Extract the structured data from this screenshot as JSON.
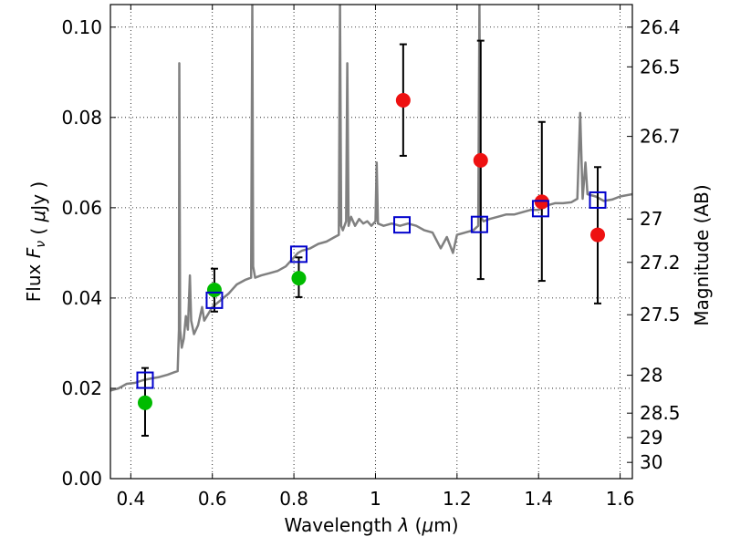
{
  "chart_data": {
    "type": "scatter",
    "xlabel": "Wavelength λ (μm)",
    "ylabel": "Flux F_ν (μJy)",
    "ylabel_right": "Magnitude (AB)",
    "xlim": [
      0.35,
      1.63
    ],
    "ylim": [
      0.0,
      0.105
    ],
    "x_ticks": [
      "0.4",
      "0.6",
      "0.8",
      "1",
      "1.2",
      "1.4",
      "1.6"
    ],
    "y_ticks": [
      "0.00",
      "0.02",
      "0.04",
      "0.06",
      "0.08",
      "0.10"
    ],
    "right_ticks": [
      {
        "label": "26.4",
        "flux": 0.1
      },
      {
        "label": "26.5",
        "flux": 0.0912
      },
      {
        "label": "26.7",
        "flux": 0.0758
      },
      {
        "label": "27",
        "flux": 0.0575
      },
      {
        "label": "27.2",
        "flux": 0.0479
      },
      {
        "label": "27.5",
        "flux": 0.0363
      },
      {
        "label": "28",
        "flux": 0.0229
      },
      {
        "label": "28.5",
        "flux": 0.0145
      },
      {
        "label": "29",
        "flux": 0.0091
      },
      {
        "label": "30",
        "flux": 0.0036
      }
    ],
    "grid": true,
    "colors": {
      "spectrum": "#808080",
      "green": "#00bb00",
      "red": "#ee1111",
      "model": "#0000cc",
      "errorbar": "#000000"
    },
    "model_points": [
      {
        "x": 0.435,
        "y": 0.0218
      },
      {
        "x": 0.605,
        "y": 0.0395
      },
      {
        "x": 0.812,
        "y": 0.0497
      },
      {
        "x": 1.065,
        "y": 0.0562
      },
      {
        "x": 1.255,
        "y": 0.0563
      },
      {
        "x": 1.405,
        "y": 0.0598
      },
      {
        "x": 1.545,
        "y": 0.0617
      }
    ],
    "observed_points": [
      {
        "x": 0.435,
        "y": 0.0168,
        "yerr_low": 0.0095,
        "yerr_high": 0.0245,
        "color": "green"
      },
      {
        "x": 0.605,
        "y": 0.0418,
        "yerr_low": 0.037,
        "yerr_high": 0.0465,
        "color": "green"
      },
      {
        "x": 0.812,
        "y": 0.0444,
        "yerr_low": 0.0402,
        "yerr_high": 0.049,
        "color": "green"
      },
      {
        "x": 1.068,
        "y": 0.0838,
        "yerr_low": 0.0715,
        "yerr_high": 0.0962,
        "color": "red"
      },
      {
        "x": 1.258,
        "y": 0.0705,
        "yerr_low": 0.0442,
        "yerr_high": 0.097,
        "color": "red"
      },
      {
        "x": 1.408,
        "y": 0.0613,
        "yerr_low": 0.0438,
        "yerr_high": 0.079,
        "color": "red"
      },
      {
        "x": 1.545,
        "y": 0.054,
        "yerr_low": 0.0388,
        "yerr_high": 0.069,
        "color": "red"
      }
    ],
    "spectrum": [
      [
        0.35,
        0.0195
      ],
      [
        0.37,
        0.02
      ],
      [
        0.39,
        0.021
      ],
      [
        0.41,
        0.0212
      ],
      [
        0.43,
        0.0218
      ],
      [
        0.45,
        0.0222
      ],
      [
        0.47,
        0.0225
      ],
      [
        0.49,
        0.023
      ],
      [
        0.505,
        0.0235
      ],
      [
        0.515,
        0.0238
      ],
      [
        0.518,
        0.033
      ],
      [
        0.519,
        0.092
      ],
      [
        0.521,
        0.033
      ],
      [
        0.525,
        0.029
      ],
      [
        0.53,
        0.031
      ],
      [
        0.535,
        0.036
      ],
      [
        0.54,
        0.033
      ],
      [
        0.545,
        0.045
      ],
      [
        0.548,
        0.035
      ],
      [
        0.555,
        0.032
      ],
      [
        0.565,
        0.034
      ],
      [
        0.575,
        0.038
      ],
      [
        0.58,
        0.035
      ],
      [
        0.59,
        0.0365
      ],
      [
        0.6,
        0.038
      ],
      [
        0.62,
        0.0395
      ],
      [
        0.64,
        0.041
      ],
      [
        0.66,
        0.043
      ],
      [
        0.68,
        0.044
      ],
      [
        0.695,
        0.0445
      ],
      [
        0.698,
        0.105
      ],
      [
        0.7,
        0.047
      ],
      [
        0.705,
        0.0445
      ],
      [
        0.72,
        0.045
      ],
      [
        0.74,
        0.0455
      ],
      [
        0.76,
        0.046
      ],
      [
        0.78,
        0.047
      ],
      [
        0.8,
        0.049
      ],
      [
        0.81,
        0.05
      ],
      [
        0.82,
        0.0505
      ],
      [
        0.84,
        0.051
      ],
      [
        0.86,
        0.052
      ],
      [
        0.88,
        0.0525
      ],
      [
        0.9,
        0.0535
      ],
      [
        0.91,
        0.054
      ],
      [
        0.913,
        0.105
      ],
      [
        0.916,
        0.056
      ],
      [
        0.92,
        0.055
      ],
      [
        0.928,
        0.057
      ],
      [
        0.931,
        0.092
      ],
      [
        0.934,
        0.056
      ],
      [
        0.94,
        0.058
      ],
      [
        0.95,
        0.056
      ],
      [
        0.96,
        0.0575
      ],
      [
        0.97,
        0.0565
      ],
      [
        0.98,
        0.057
      ],
      [
        0.99,
        0.056
      ],
      [
        1.0,
        0.057
      ],
      [
        1.003,
        0.07
      ],
      [
        1.006,
        0.0565
      ],
      [
        1.02,
        0.056
      ],
      [
        1.04,
        0.0565
      ],
      [
        1.06,
        0.056
      ],
      [
        1.08,
        0.0565
      ],
      [
        1.1,
        0.056
      ],
      [
        1.12,
        0.055
      ],
      [
        1.14,
        0.0545
      ],
      [
        1.16,
        0.051
      ],
      [
        1.175,
        0.0535
      ],
      [
        1.19,
        0.05
      ],
      [
        1.2,
        0.054
      ],
      [
        1.22,
        0.0545
      ],
      [
        1.24,
        0.055
      ],
      [
        1.252,
        0.056
      ],
      [
        1.255,
        0.105
      ],
      [
        1.258,
        0.058
      ],
      [
        1.265,
        0.057
      ],
      [
        1.28,
        0.0575
      ],
      [
        1.3,
        0.058
      ],
      [
        1.32,
        0.0585
      ],
      [
        1.34,
        0.0585
      ],
      [
        1.36,
        0.059
      ],
      [
        1.38,
        0.0595
      ],
      [
        1.4,
        0.0595
      ],
      [
        1.42,
        0.0605
      ],
      [
        1.44,
        0.061
      ],
      [
        1.46,
        0.061
      ],
      [
        1.48,
        0.0612
      ],
      [
        1.495,
        0.062
      ],
      [
        1.502,
        0.081
      ],
      [
        1.508,
        0.062
      ],
      [
        1.515,
        0.07
      ],
      [
        1.52,
        0.063
      ],
      [
        1.54,
        0.0625
      ],
      [
        1.56,
        0.0615
      ],
      [
        1.58,
        0.0618
      ],
      [
        1.6,
        0.0625
      ],
      [
        1.63,
        0.063
      ]
    ]
  }
}
